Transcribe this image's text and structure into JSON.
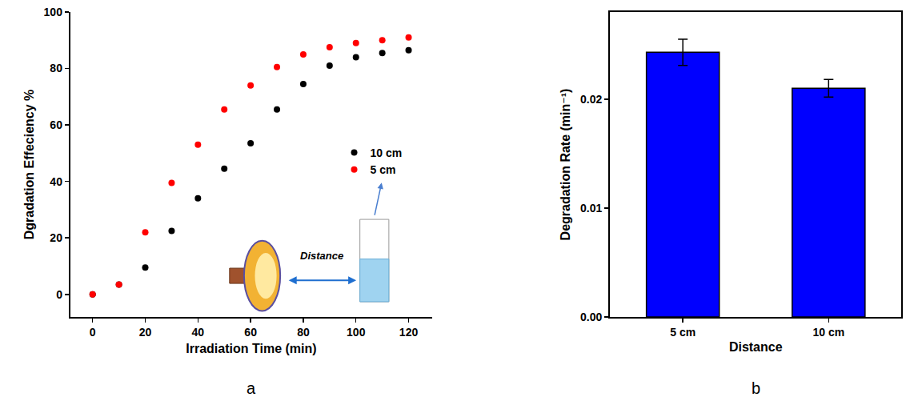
{
  "chart_data": [
    {
      "type": "scatter",
      "label": "a",
      "annotations": [
        "Distance"
      ],
      "x": [
        0,
        10,
        20,
        30,
        40,
        50,
        60,
        70,
        80,
        90,
        100,
        110,
        120
      ],
      "series": [
        {
          "name": "10 cm",
          "color": "#000000",
          "marker": "circle",
          "values": [
            0,
            3.5,
            9.5,
            22.5,
            34,
            44.5,
            53.5,
            65.5,
            74.5,
            81,
            84,
            85.5,
            86.5
          ]
        },
        {
          "name": "5 cm",
          "color": "#ff0000",
          "marker": "circle",
          "values": [
            0,
            3.5,
            22,
            39.5,
            53,
            65.5,
            74,
            80.5,
            85,
            87.5,
            89,
            90,
            91
          ]
        }
      ],
      "x_label": "Irradiation Time (min)",
      "y_label": "Dgradation Effeciency %",
      "xlim": [
        -8.5,
        129
      ],
      "xticks": [
        0,
        20,
        40,
        60,
        80,
        100,
        120
      ],
      "ylim": [
        -8,
        100
      ],
      "yticks": [
        0,
        20,
        40,
        60,
        80,
        100
      ],
      "legend": "center right",
      "grid": false
    },
    {
      "type": "bar",
      "label": "b",
      "categories": [
        "5 cm",
        "10 cm"
      ],
      "values": [
        0.0243,
        0.021
      ],
      "errors": [
        0.0012,
        0.0008
      ],
      "color": "#0000ff",
      "x_label": "Distance",
      "y_label": "Degradation Rate (min⁻¹)",
      "ylim": [
        0,
        0.028
      ],
      "yticks": [
        {
          "value": 0,
          "label": "0.00"
        },
        0.01,
        0.02
      ],
      "grid": false
    }
  ]
}
